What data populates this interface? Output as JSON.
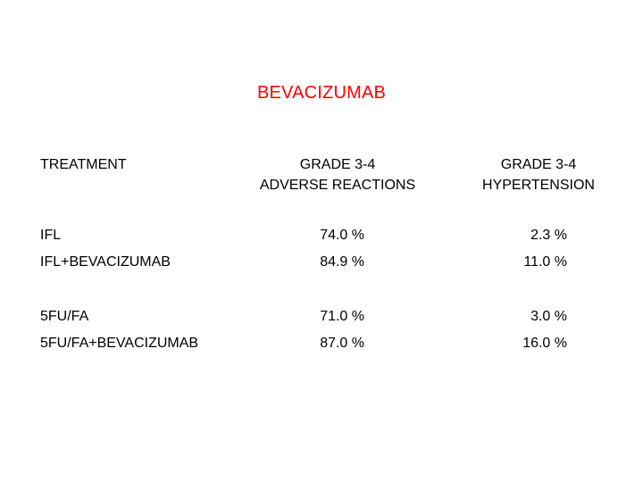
{
  "title": "BEVACIZUMAB",
  "title_color": "#ff0000",
  "headers": {
    "treatment": "TREATMENT",
    "adverse_line1": "GRADE 3-4",
    "adverse_line2": "ADVERSE REACTIONS",
    "hyper_line1": "GRADE 3-4",
    "hyper_line2": "HYPERTENSION"
  },
  "rows": [
    {
      "treatment": "IFL",
      "adverse": "74.0 %",
      "hypertension": "2.3 %"
    },
    {
      "treatment": "IFL+BEVACIZUMAB",
      "adverse": "84.9 %",
      "hypertension": "11.0 %"
    },
    {
      "treatment": "5FU/FA",
      "adverse": "71.0 %",
      "hypertension": "3.0 %"
    },
    {
      "treatment": "5FU/FA+BEVACIZUMAB",
      "adverse": "87.0 %",
      "hypertension": "16.0 %"
    }
  ]
}
